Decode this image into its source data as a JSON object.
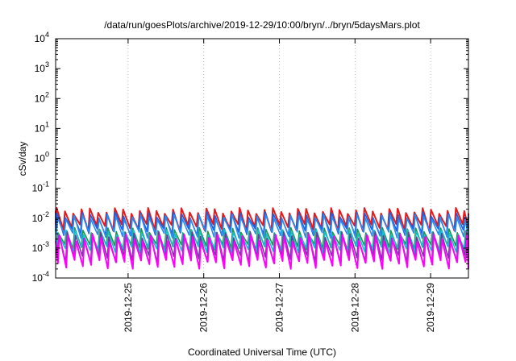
{
  "chart_data": {
    "type": "line",
    "title": "/data/run/goesPlots/archive/2019-12-29/10:00/bryn/../bryn/5daysMars.plot",
    "xlabel": "Coordinated Universal Time (UTC)",
    "ylabel": "cSv/day",
    "yscale": "log",
    "ylim": [
      0.0001,
      10000
    ],
    "y_ticks": [
      {
        "value": 0.0001,
        "base": "10",
        "exp": "-4"
      },
      {
        "value": 0.001,
        "base": "10",
        "exp": "-3"
      },
      {
        "value": 0.01,
        "base": "10",
        "exp": "-2"
      },
      {
        "value": 0.1,
        "base": "10",
        "exp": "-1"
      },
      {
        "value": 1,
        "base": "10",
        "exp": "0"
      },
      {
        "value": 10,
        "base": "10",
        "exp": "1"
      },
      {
        "value": 100,
        "base": "10",
        "exp": "2"
      },
      {
        "value": 1000,
        "base": "10",
        "exp": "3"
      },
      {
        "value": 10000,
        "base": "10",
        "exp": "4"
      }
    ],
    "xlim": [
      "2019-12-24T01:00",
      "2019-12-29T12:00"
    ],
    "x_ticks": [
      "2019-12-25",
      "2019-12-26",
      "2019-12-27",
      "2019-12-28",
      "2019-12-29"
    ],
    "grid": true,
    "cycle_hours": 2.64,
    "series": [
      {
        "color": "#e41a1c",
        "cycles": 50,
        "peak_hour": 0.3,
        "peak": 0.018,
        "trough": 0.005,
        "jitter": 0.45
      },
      {
        "color": "#1f5fe0",
        "cycles": 50,
        "peak_hour": 0.45,
        "peak": 0.013,
        "trough": 0.0035,
        "jitter": 0.45
      },
      {
        "color": "#2b8cf0",
        "cycles": 50,
        "peak_hour": 0.6,
        "peak": 0.011,
        "trough": 0.0028,
        "jitter": 0.4
      },
      {
        "color": "#1a9850",
        "cycles": 50,
        "peak_hour": 0.75,
        "peak": 0.004,
        "trough": 0.0011,
        "jitter": 0.4
      },
      {
        "color": "#17becf",
        "cycles": 50,
        "peak_hour": 0.9,
        "peak": 0.0034,
        "trough": 0.0009,
        "jitter": 0.4
      },
      {
        "color": "#6a3d9a",
        "cycles": 50,
        "peak_hour": 1.05,
        "peak": 0.0028,
        "trough": 0.00045,
        "jitter": 0.5
      },
      {
        "color": "#ff00ff",
        "cycles": 50,
        "peak_hour": 1.2,
        "peak": 0.0022,
        "trough": 0.0003,
        "jitter": 0.55
      }
    ]
  }
}
